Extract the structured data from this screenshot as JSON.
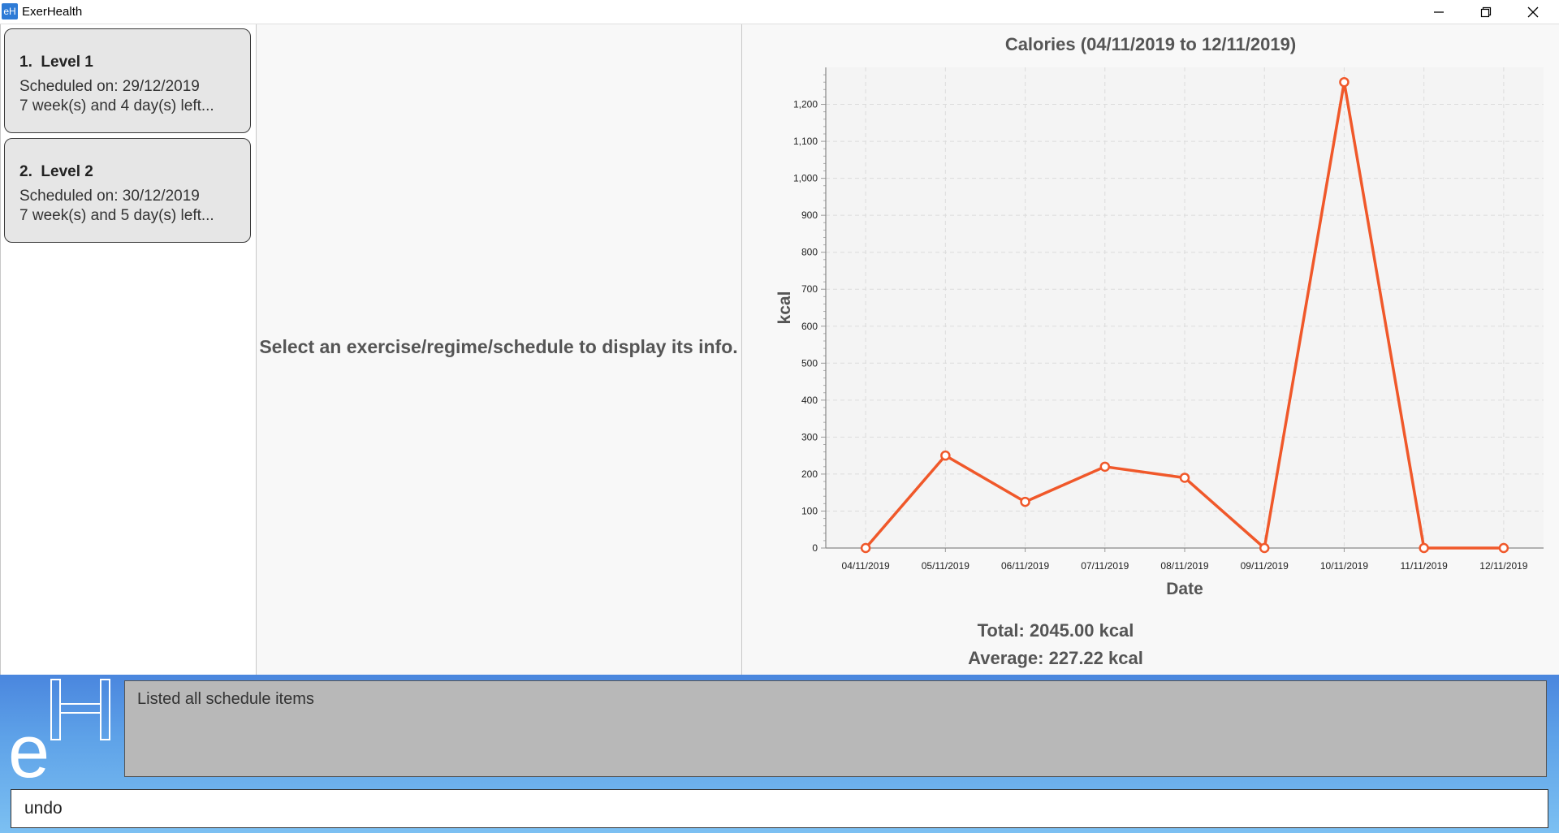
{
  "window": {
    "title": "ExerHealth",
    "app_icon": "eH"
  },
  "list": {
    "items": [
      {
        "index": "1.",
        "name": "Level 1",
        "scheduled": "Scheduled on: 29/12/2019",
        "remaining": "7 week(s) and 4 day(s) left..."
      },
      {
        "index": "2.",
        "name": "Level 2",
        "scheduled": "Scheduled on: 30/12/2019",
        "remaining": "7 week(s) and 5 day(s) left..."
      }
    ]
  },
  "info": {
    "placeholder": "Select an exercise/regime/schedule to display its info."
  },
  "stats": {
    "total": "Total: 2045.00 kcal",
    "average": "Average: 227.22 kcal"
  },
  "chart_data": {
    "type": "line",
    "title": "Calories (04/11/2019 to 12/11/2019)",
    "xlabel": "Date",
    "ylabel": "kcal",
    "categories": [
      "04/11/2019",
      "05/11/2019",
      "06/11/2019",
      "07/11/2019",
      "08/11/2019",
      "09/11/2019",
      "10/11/2019",
      "11/11/2019",
      "12/11/2019"
    ],
    "series": [
      {
        "values": [
          0,
          250,
          125,
          220,
          190,
          0,
          1260,
          0,
          0
        ]
      }
    ],
    "ylim": [
      0,
      1300
    ],
    "yticks": [
      0,
      100,
      200,
      300,
      400,
      500,
      600,
      700,
      800,
      900,
      1000,
      1100,
      1200
    ],
    "ytick_labels": [
      "0",
      "100",
      "200",
      "300",
      "400",
      "500",
      "600",
      "700",
      "800",
      "900",
      "1,000",
      "1,100",
      "1,200"
    ],
    "grid": true,
    "color": "#f0582a"
  },
  "bottom": {
    "logo_text": "e",
    "result": "Listed all schedule items",
    "command": "undo"
  },
  "colors": {
    "accent": "#f0582a",
    "panel_blue": "#5ea2e8"
  }
}
